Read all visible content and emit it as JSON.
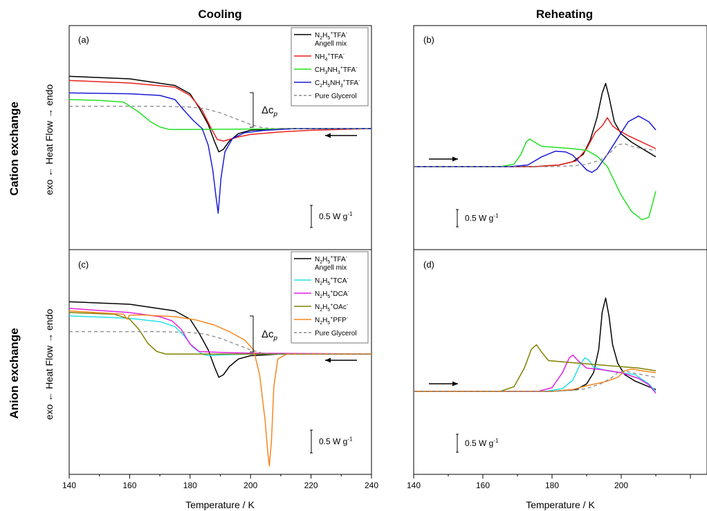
{
  "columns": [
    "Cooling",
    "Reheating"
  ],
  "rows": [
    "Cation exchange",
    "Anion exchange"
  ],
  "ylabel": "exo ← Heat Flow → endo",
  "xlabel": "Temperature / K",
  "scale_bar": "0.5 W g",
  "scale_bar_sup": "-1",
  "delta_cp": "Δc",
  "delta_cp_sub": "p",
  "chart_data": [
    {
      "panel": "(a)",
      "type": "line",
      "xlim": [
        140,
        240
      ],
      "xticks": [
        140,
        160,
        180,
        200,
        220,
        240
      ],
      "legend": [
        "N2H5+TFA- Angell mix",
        "NH4+TFA-",
        "CH3NH3+TFA-",
        "C2H5NH3+TFA-",
        "Pure Glycerol"
      ],
      "series": [
        {
          "name": "N2H5+TFA- Angell mix",
          "color": "#000000",
          "x": [
            140,
            160,
            175,
            180,
            183,
            186,
            188,
            189.5,
            191,
            193,
            196,
            200,
            210,
            220,
            240
          ],
          "y": [
            0.63,
            0.6,
            0.52,
            0.42,
            0.25,
            0.05,
            -0.15,
            -0.28,
            -0.25,
            -0.15,
            -0.06,
            -0.02,
            0,
            0,
            0
          ]
        },
        {
          "name": "NH4+TFA-",
          "color": "#e8201a",
          "x": [
            140,
            160,
            175,
            180,
            184,
            187,
            189,
            191,
            193,
            196,
            200,
            210,
            220,
            240
          ],
          "y": [
            0.58,
            0.55,
            0.5,
            0.4,
            0.22,
            0.0,
            -0.13,
            -0.15,
            -0.13,
            -0.1,
            -0.07,
            -0.04,
            -0.02,
            0
          ]
        },
        {
          "name": "CH3NH3+TFA-",
          "color": "#22e022",
          "x": [
            140,
            150,
            158,
            163,
            167,
            170,
            173,
            180,
            200,
            220,
            240
          ],
          "y": [
            0.35,
            0.34,
            0.32,
            0.2,
            0.08,
            0.02,
            -0.01,
            -0.01,
            -0.005,
            0,
            0
          ]
        },
        {
          "name": "C2H5NH3+TFA-",
          "color": "#1a1ad8",
          "x": [
            140,
            160,
            170,
            175,
            178,
            181,
            184,
            186,
            187.5,
            188.5,
            189.3,
            190.2,
            191.5,
            194,
            198,
            205,
            215,
            240
          ],
          "y": [
            0.43,
            0.42,
            0.4,
            0.35,
            0.22,
            0.1,
            0.0,
            -0.2,
            -0.5,
            -0.8,
            -1.02,
            -0.6,
            -0.28,
            -0.12,
            -0.05,
            -0.02,
            0,
            0
          ]
        },
        {
          "name": "Pure Glycerol",
          "color": "#888888",
          "dashed": true,
          "x": [
            140,
            170,
            180,
            185,
            190,
            195,
            200,
            204,
            208,
            240
          ],
          "y": [
            0.27,
            0.27,
            0.26,
            0.24,
            0.19,
            0.12,
            0.05,
            0.01,
            0,
            0
          ]
        }
      ]
    },
    {
      "panel": "(b)",
      "type": "line",
      "xlim": [
        140,
        240
      ],
      "xticks": [
        140,
        160,
        180,
        200
      ],
      "series": [
        {
          "name": "N2H5+TFA- Angell mix",
          "color": "#000000",
          "x": [
            140,
            175,
            182,
            186,
            189,
            191,
            193,
            194.5,
            195.5,
            196.5,
            198,
            200,
            203,
            210
          ],
          "y": [
            0,
            0,
            0.02,
            0.06,
            0.15,
            0.32,
            0.6,
            0.9,
            1.02,
            0.85,
            0.55,
            0.4,
            0.3,
            0.12
          ]
        },
        {
          "name": "NH4+TFA-",
          "color": "#e8201a",
          "x": [
            140,
            175,
            182,
            187,
            190,
            192.5,
            194.5,
            196,
            197.5,
            199,
            202,
            206,
            210
          ],
          "y": [
            0,
            0,
            0.02,
            0.07,
            0.22,
            0.42,
            0.5,
            0.6,
            0.5,
            0.45,
            0.38,
            0.3,
            0.22
          ]
        },
        {
          "name": "CH3NH3+TFA-",
          "color": "#22e022",
          "x": [
            140,
            165,
            169,
            171,
            172.5,
            173.5,
            175,
            177,
            180,
            186,
            190,
            193,
            196,
            200,
            203,
            206,
            208,
            210
          ],
          "y": [
            0,
            0,
            0.03,
            0.15,
            0.3,
            0.34,
            0.3,
            0.25,
            0.24,
            0.22,
            0.2,
            0.13,
            0.0,
            -0.35,
            -0.55,
            -0.65,
            -0.62,
            -0.3
          ]
        },
        {
          "name": "C2H5NH3+TFA-",
          "color": "#1a1ad8",
          "x": [
            140,
            168,
            173,
            177,
            181,
            184,
            186,
            188,
            190,
            191.5,
            193,
            196,
            199,
            202,
            205,
            208,
            210
          ],
          "y": [
            0,
            0,
            0.02,
            0.12,
            0.19,
            0.18,
            0.14,
            0.05,
            -0.04,
            -0.07,
            -0.03,
            0.15,
            0.35,
            0.55,
            0.62,
            0.55,
            0.45
          ]
        },
        {
          "name": "Pure Glycerol",
          "color": "#888888",
          "dashed": true,
          "x": [
            140,
            180,
            186,
            190,
            194,
            197,
            199,
            201,
            203,
            206,
            210
          ],
          "y": [
            0,
            0,
            0.01,
            0.03,
            0.08,
            0.18,
            0.27,
            0.28,
            0.25,
            0.22,
            0.2
          ]
        }
      ]
    },
    {
      "panel": "(c)",
      "type": "line",
      "xlim": [
        140,
        240
      ],
      "xticks": [
        140,
        160,
        180,
        200,
        220,
        240
      ],
      "legend": [
        "N2H5+TFA- Angell mix",
        "N2H5+TCA-",
        "N2H5+DCA-",
        "N2H5+OAc-",
        "N2H5+PFP-",
        "Pure Glycerol"
      ],
      "series": [
        {
          "name": "N2H5+TFA- Angell mix",
          "color": "#000000",
          "x": [
            140,
            160,
            175,
            180,
            183,
            186,
            188,
            189.5,
            191,
            193,
            196,
            200,
            210,
            220,
            240
          ],
          "y": [
            0.63,
            0.6,
            0.52,
            0.42,
            0.25,
            0.05,
            -0.15,
            -0.28,
            -0.25,
            -0.15,
            -0.06,
            -0.02,
            0,
            0,
            0
          ]
        },
        {
          "name": "N2H5+TCA-",
          "color": "#22e0e8",
          "x": [
            140,
            160,
            170,
            175,
            178,
            181,
            184,
            186,
            190,
            200,
            240
          ],
          "y": [
            0.46,
            0.43,
            0.39,
            0.33,
            0.22,
            0.08,
            0.0,
            -0.02,
            -0.01,
            0,
            0
          ]
        },
        {
          "name": "N2H5+DCA-",
          "color": "#e020e0",
          "x": [
            140,
            160,
            170,
            174,
            177,
            180,
            183,
            190,
            200,
            240
          ],
          "y": [
            0.55,
            0.5,
            0.45,
            0.4,
            0.3,
            0.12,
            0.03,
            0.02,
            0.01,
            0
          ],
          "dip": true
        },
        {
          "name": "N2H5+OAc-",
          "color": "#808000",
          "x": [
            140,
            155,
            160,
            163,
            166,
            169,
            172,
            180,
            200,
            240
          ],
          "y": [
            0.5,
            0.48,
            0.42,
            0.3,
            0.13,
            0.03,
            0.0,
            0,
            0,
            0
          ]
        },
        {
          "name": "N2H5+PFP-",
          "color": "#f5861f",
          "x": [
            140,
            158,
            159.2,
            160,
            165,
            175,
            182,
            188,
            193,
            198,
            201,
            203,
            204.8,
            205.6,
            206.2,
            206.9,
            207.7,
            209,
            212,
            220,
            240
          ],
          "y": [
            0.52,
            0.48,
            0.42,
            0.47,
            0.47,
            0.45,
            0.41,
            0.35,
            0.27,
            0.17,
            0.05,
            -0.25,
            -0.8,
            -1.15,
            -1.35,
            -1.05,
            -0.4,
            -0.06,
            0,
            0,
            0
          ]
        },
        {
          "name": "Pure Glycerol",
          "color": "#888888",
          "dashed": true,
          "x": [
            140,
            170,
            180,
            185,
            190,
            195,
            200,
            204,
            208,
            240
          ],
          "y": [
            0.27,
            0.27,
            0.26,
            0.24,
            0.19,
            0.12,
            0.05,
            0.01,
            0,
            0
          ]
        }
      ]
    },
    {
      "panel": "(d)",
      "type": "line",
      "xlim": [
        140,
        240
      ],
      "xticks": [
        140,
        160,
        180,
        200
      ],
      "series": [
        {
          "name": "N2H5+TFA- Angell mix",
          "color": "#000000",
          "x": [
            140,
            180,
            187,
            190,
            192,
            193.5,
            194.5,
            195.5,
            196.5,
            197.5,
            199,
            201,
            204,
            208,
            210
          ],
          "y": [
            0,
            0,
            0.02,
            0.08,
            0.2,
            0.45,
            0.85,
            1.0,
            0.8,
            0.5,
            0.3,
            0.18,
            0.11,
            0.05,
            0.02
          ]
        },
        {
          "name": "N2H5+TCA-",
          "color": "#22e0e8",
          "x": [
            140,
            178,
            183,
            186,
            188,
            189.5,
            190.5,
            192,
            196,
            200,
            204,
            208,
            210
          ],
          "y": [
            0,
            0,
            0.03,
            0.12,
            0.28,
            0.36,
            0.34,
            0.26,
            0.22,
            0.2,
            0.18,
            0.08,
            0.0
          ]
        },
        {
          "name": "N2H5+DCA-",
          "color": "#e020e0",
          "x": [
            140,
            176,
            180,
            183,
            185,
            186,
            187.5,
            190,
            195,
            200,
            205,
            208,
            210
          ],
          "y": [
            0,
            0,
            0.04,
            0.2,
            0.36,
            0.39,
            0.33,
            0.25,
            0.23,
            0.2,
            0.14,
            0.07,
            -0.02
          ]
        },
        {
          "name": "N2H5+OAc-",
          "color": "#808000",
          "x": [
            140,
            165,
            169,
            172,
            174,
            175.5,
            177,
            179,
            185,
            195,
            205,
            210
          ],
          "y": [
            0,
            0,
            0.05,
            0.25,
            0.45,
            0.5,
            0.42,
            0.33,
            0.31,
            0.28,
            0.25,
            0.22
          ]
        },
        {
          "name": "N2H5+PFP-",
          "color": "#f5861f",
          "x": [
            140,
            180,
            186,
            190,
            195,
            199,
            201,
            203,
            206,
            210
          ],
          "y": [
            0,
            0,
            0.02,
            0.06,
            0.1,
            0.15,
            0.22,
            0.24,
            0.22,
            0.2
          ]
        },
        {
          "name": "Pure Glycerol",
          "color": "#888888",
          "dashed": true,
          "x": [
            140,
            180,
            186,
            190,
            194,
            197,
            199,
            201,
            203,
            206,
            210
          ],
          "y": [
            0,
            0,
            0.01,
            0.03,
            0.08,
            0.14,
            0.2,
            0.22,
            0.2,
            0.18,
            0.15
          ]
        }
      ]
    }
  ]
}
